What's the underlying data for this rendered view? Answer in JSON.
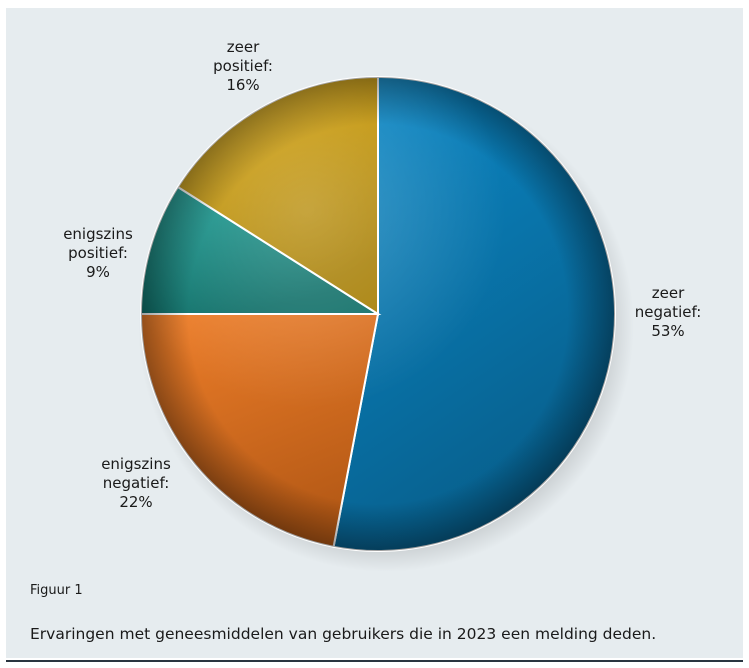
{
  "figure": {
    "number": "Figuur 1",
    "caption": "Ervaringen met geneesmiddelen van gebruikers die in 2023 een melding deden."
  },
  "chart_data": {
    "type": "pie",
    "title": "",
    "slices": [
      {
        "label_lines": [
          "zeer",
          "negatief:"
        ],
        "percent_text": "53%",
        "value": 53,
        "color": "#0b89c8",
        "shade": "#075f8c"
      },
      {
        "label_lines": [
          "enigszins",
          "negatief:"
        ],
        "percent_text": "22%",
        "value": 22,
        "color": "#ef7f2a",
        "shade": "#b65a16"
      },
      {
        "label_lines": [
          "enigszins",
          "positief:"
        ],
        "percent_text": "9%",
        "value": 9,
        "color": "#159c93",
        "shade": "#0e6e67"
      },
      {
        "label_lines": [
          "zeer",
          "positief:"
        ],
        "percent_text": "16%",
        "value": 16,
        "color": "#dca80b",
        "shade": "#a77f05"
      }
    ],
    "start": "12 o'clock",
    "direction": "clockwise",
    "labels": "outside"
  }
}
